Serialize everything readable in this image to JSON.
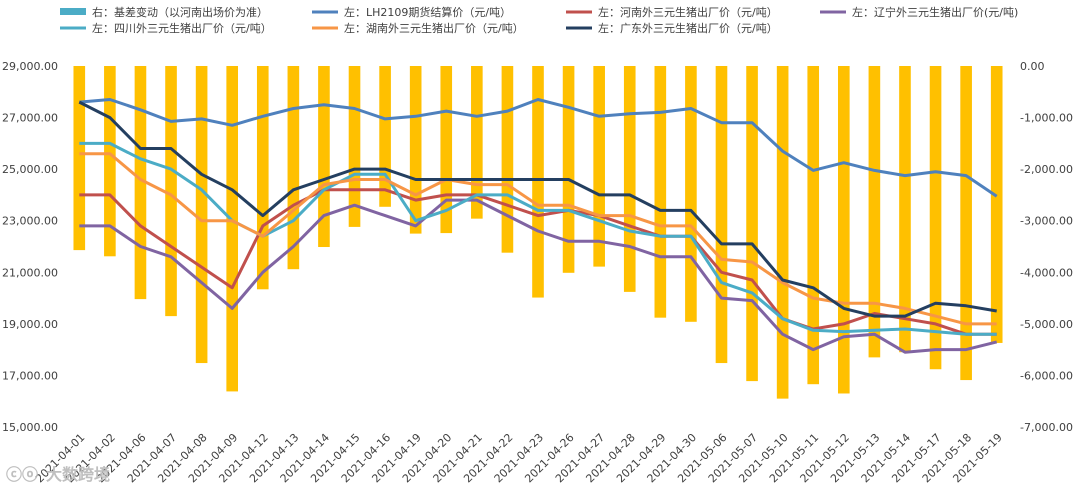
{
  "chart_data": {
    "type": "bar+line",
    "categories": [
      "2021-04-01",
      "2021-04-02",
      "2021-04-06",
      "2021-04-07",
      "2021-04-08",
      "2021-04-09",
      "2021-04-12",
      "2021-04-13",
      "2021-04-14",
      "2021-04-15",
      "2021-04-16",
      "2021-04-19",
      "2021-04-20",
      "2021-04-21",
      "2021-04-22",
      "2021-04-23",
      "2021-04-26",
      "2021-04-27",
      "2021-04-28",
      "2021-04-29",
      "2021-04-30",
      "2021-05-06",
      "2021-05-07",
      "2021-05-10",
      "2021-05-11",
      "2021-05-12",
      "2021-05-13",
      "2021-05-14",
      "2021-05-17",
      "2021-05-18",
      "2021-05-19"
    ],
    "left_axis": {
      "min": 15000,
      "max": 29000,
      "step": 2000,
      "tick_labels": [
        "15,000.00",
        "17,000.00",
        "19,000.00",
        "21,000.00",
        "23,000.00",
        "25,000.00",
        "27,000.00",
        "29,000.00"
      ]
    },
    "right_axis": {
      "min": -7000,
      "max": 0,
      "step": 1000,
      "tick_labels": [
        "-7,000.00",
        "-6,000.00",
        "-5,000.00",
        "-4,000.00",
        "-3,000.00",
        "-2,000.00",
        "-1,000.00",
        "0.00"
      ]
    },
    "bar_series": {
      "name": "右：基差变动（以河南出场价为准）",
      "color": "#ffc000",
      "axis": "right",
      "values": [
        -3570,
        -3690,
        -4520,
        -4850,
        -5760,
        -6310,
        -4330,
        -3940,
        -3510,
        -3120,
        -2730,
        -3250,
        -3240,
        -2960,
        -3620,
        -4490,
        -4010,
        -3890,
        -4380,
        -4880,
        -4960,
        -5760,
        -6110,
        -6450,
        -6170,
        -6350,
        -5650,
        -5550,
        -5880,
        -6090,
        -5370
      ]
    },
    "series": [
      {
        "name": "左：LH2109期货结算价（元/吨）",
        "color": "#4f81bd",
        "values": [
          27600,
          27700,
          27300,
          26850,
          26950,
          26700,
          27050,
          27350,
          27500,
          27350,
          26950,
          27050,
          27250,
          27050,
          27250,
          27700,
          27400,
          27050,
          27150,
          27200,
          27350,
          26800,
          26800,
          25700,
          24950,
          25250,
          24950,
          24750,
          24900,
          24750,
          23950
        ]
      },
      {
        "name": "左：河南外三元生猪出厂价（元/吨）",
        "color": "#c0504d",
        "values": [
          24000,
          24000,
          22800,
          22000,
          21200,
          20400,
          22800,
          23600,
          24200,
          24200,
          24200,
          23800,
          24000,
          24000,
          23600,
          23200,
          23400,
          23200,
          22800,
          22400,
          22400,
          21000,
          20700,
          19200,
          18800,
          19000,
          19400,
          19200,
          19000,
          18600,
          18600
        ]
      },
      {
        "name": "左：辽宁外三元生猪出厂价(元/吨)",
        "color": "#8064a2",
        "values": [
          22800,
          22800,
          22000,
          21600,
          20600,
          19600,
          21000,
          22000,
          23200,
          23600,
          23200,
          22800,
          23800,
          23800,
          23200,
          22600,
          22200,
          22200,
          22000,
          21600,
          21600,
          20000,
          19900,
          18600,
          18000,
          18500,
          18600,
          17900,
          18000,
          18000,
          18300
        ]
      },
      {
        "name": "左：四川外三元生猪出厂价（元/吨）",
        "color": "#4bacc6",
        "values": [
          26000,
          26000,
          25400,
          25000,
          24200,
          23000,
          22400,
          23000,
          24200,
          24800,
          24800,
          23000,
          23400,
          24000,
          24000,
          23400,
          23400,
          23000,
          22600,
          22400,
          22400,
          20600,
          20200,
          19200,
          18750,
          18700,
          18750,
          18800,
          18700,
          18600,
          18600
        ]
      },
      {
        "name": "左：湖南外三元生猪出厂价（元/吨）",
        "color": "#f79646",
        "values": [
          25600,
          25600,
          24600,
          24000,
          23000,
          23000,
          22400,
          23400,
          24400,
          24600,
          24600,
          24000,
          24600,
          24400,
          24400,
          23600,
          23600,
          23200,
          23200,
          22800,
          22800,
          21500,
          21400,
          20600,
          20000,
          19800,
          19800,
          19600,
          19300,
          19000,
          19000
        ]
      },
      {
        "name": "左：广东外三元生猪出厂价（元/吨）",
        "color": "#243f60",
        "values": [
          27600,
          27000,
          25800,
          25800,
          24800,
          24200,
          23200,
          24200,
          24600,
          25000,
          25000,
          24600,
          24600,
          24600,
          24600,
          24600,
          24600,
          24000,
          24000,
          23400,
          23400,
          22100,
          22100,
          20700,
          20400,
          19600,
          19300,
          19300,
          19800,
          19700,
          19500
        ]
      }
    ],
    "watermark": "大数跨境"
  }
}
